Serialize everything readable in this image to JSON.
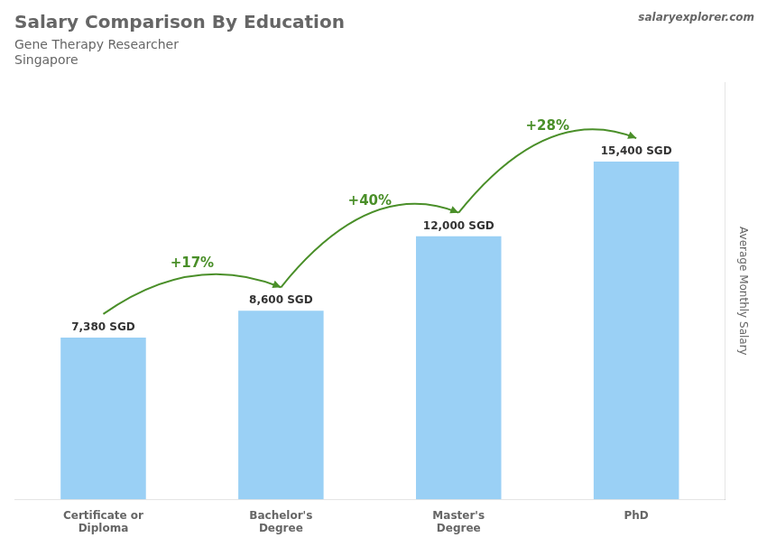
{
  "chart_data": {
    "type": "bar",
    "title": "Salary Comparison By Education",
    "subtitle": "Gene Therapy Researcher",
    "location": "Singapore",
    "watermark": "salaryexplorer.com",
    "ylabel": "Average Monthly Salary",
    "categories": [
      "Certificate or\nDiploma",
      "Bachelor's\nDegree",
      "Master's\nDegree",
      "PhD"
    ],
    "values": [
      7380,
      8600,
      12000,
      15400
    ],
    "value_labels": [
      "7,380 SGD",
      "8,600 SGD",
      "12,000 SGD",
      "15,400 SGD"
    ],
    "data_labels": true,
    "annotations": [
      "+17%",
      "+40%",
      "+28%"
    ],
    "ylim": [
      0,
      19000
    ],
    "yticks": [],
    "tick_labels": "x",
    "grid": false,
    "legend": false
  }
}
